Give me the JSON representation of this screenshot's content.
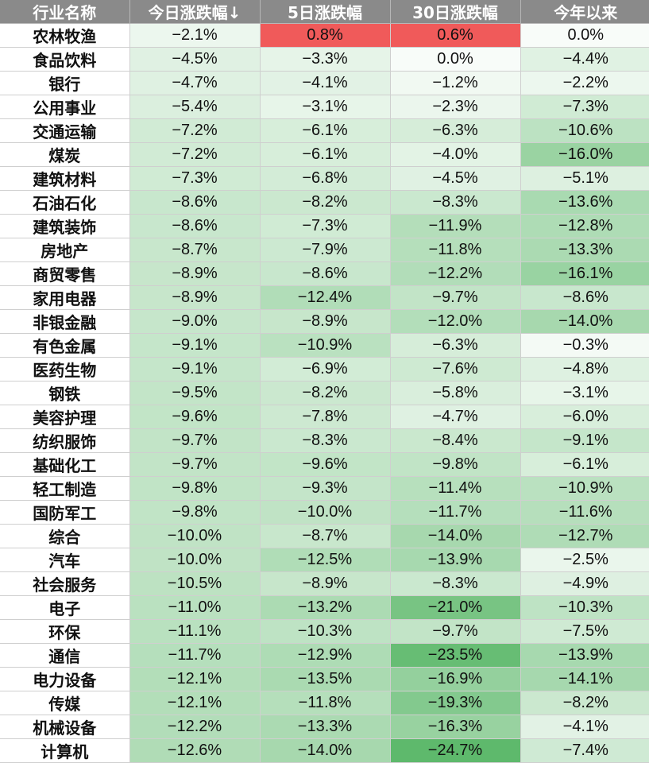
{
  "chart_data": {
    "type": "table",
    "columns": [
      "行业名称",
      "今日涨跌幅↓",
      "5日涨跌幅",
      "30日涨跌幅",
      "今年以来"
    ],
    "rows": [
      [
        "农林牧渔",
        "−2.1%",
        "0.8%",
        "0.6%",
        "0.0%"
      ],
      [
        "食品饮料",
        "−4.5%",
        "−3.3%",
        "0.0%",
        "−4.4%"
      ],
      [
        "银行",
        "−4.7%",
        "−4.1%",
        "−1.2%",
        "−2.2%"
      ],
      [
        "公用事业",
        "−5.4%",
        "−3.1%",
        "−2.3%",
        "−7.3%"
      ],
      [
        "交通运输",
        "−7.2%",
        "−6.1%",
        "−6.3%",
        "−10.6%"
      ],
      [
        "煤炭",
        "−7.2%",
        "−6.1%",
        "−4.0%",
        "−16.0%"
      ],
      [
        "建筑材料",
        "−7.3%",
        "−6.8%",
        "−4.5%",
        "−5.1%"
      ],
      [
        "石油石化",
        "−8.6%",
        "−8.2%",
        "−8.3%",
        "−13.6%"
      ],
      [
        "建筑装饰",
        "−8.6%",
        "−7.3%",
        "−11.9%",
        "−12.8%"
      ],
      [
        "房地产",
        "−8.7%",
        "−7.9%",
        "−11.8%",
        "−13.3%"
      ],
      [
        "商贸零售",
        "−8.9%",
        "−8.6%",
        "−12.2%",
        "−16.1%"
      ],
      [
        "家用电器",
        "−8.9%",
        "−12.4%",
        "−9.7%",
        "−8.6%"
      ],
      [
        "非银金融",
        "−9.0%",
        "−8.9%",
        "−12.0%",
        "−14.0%"
      ],
      [
        "有色金属",
        "−9.1%",
        "−10.9%",
        "−6.3%",
        "−0.3%"
      ],
      [
        "医药生物",
        "−9.1%",
        "−6.9%",
        "−7.6%",
        "−4.8%"
      ],
      [
        "钢铁",
        "−9.5%",
        "−8.2%",
        "−5.8%",
        "−3.1%"
      ],
      [
        "美容护理",
        "−9.6%",
        "−7.8%",
        "−4.7%",
        "−6.0%"
      ],
      [
        "纺织服饰",
        "−9.7%",
        "−8.3%",
        "−8.4%",
        "−9.1%"
      ],
      [
        "基础化工",
        "−9.7%",
        "−9.6%",
        "−9.8%",
        "−6.1%"
      ],
      [
        "轻工制造",
        "−9.8%",
        "−9.3%",
        "−11.4%",
        "−10.9%"
      ],
      [
        "国防军工",
        "−9.8%",
        "−10.0%",
        "−11.7%",
        "−11.6%"
      ],
      [
        "综合",
        "−10.0%",
        "−8.7%",
        "−14.0%",
        "−12.7%"
      ],
      [
        "汽车",
        "−10.0%",
        "−12.5%",
        "−13.9%",
        "−2.5%"
      ],
      [
        "社会服务",
        "−10.5%",
        "−8.9%",
        "−8.3%",
        "−4.9%"
      ],
      [
        "电子",
        "−11.0%",
        "−13.2%",
        "−21.0%",
        "−10.3%"
      ],
      [
        "环保",
        "−11.1%",
        "−10.3%",
        "−9.7%",
        "−7.5%"
      ],
      [
        "通信",
        "−11.7%",
        "−12.9%",
        "−23.5%",
        "−13.9%"
      ],
      [
        "电力设备",
        "−12.1%",
        "−13.5%",
        "−16.9%",
        "−14.1%"
      ],
      [
        "传媒",
        "−12.1%",
        "−11.8%",
        "−19.3%",
        "−8.2%"
      ],
      [
        "机械设备",
        "−12.2%",
        "−13.3%",
        "−16.3%",
        "−4.1%"
      ],
      [
        "计算机",
        "−12.6%",
        "−14.0%",
        "−24.7%",
        "−7.4%"
      ]
    ],
    "values": [
      [
        -2.1,
        0.8,
        0.6,
        0.0
      ],
      [
        -4.5,
        -3.3,
        0.0,
        -4.4
      ],
      [
        -4.7,
        -4.1,
        -1.2,
        -2.2
      ],
      [
        -5.4,
        -3.1,
        -2.3,
        -7.3
      ],
      [
        -7.2,
        -6.1,
        -6.3,
        -10.6
      ],
      [
        -7.2,
        -6.1,
        -4.0,
        -16.0
      ],
      [
        -7.3,
        -6.8,
        -4.5,
        -5.1
      ],
      [
        -8.6,
        -8.2,
        -8.3,
        -13.6
      ],
      [
        -8.6,
        -7.3,
        -11.9,
        -12.8
      ],
      [
        -8.7,
        -7.9,
        -11.8,
        -13.3
      ],
      [
        -8.9,
        -8.6,
        -12.2,
        -16.1
      ],
      [
        -8.9,
        -12.4,
        -9.7,
        -8.6
      ],
      [
        -9.0,
        -8.9,
        -12.0,
        -14.0
      ],
      [
        -9.1,
        -10.9,
        -6.3,
        -0.3
      ],
      [
        -9.1,
        -6.9,
        -7.6,
        -4.8
      ],
      [
        -9.5,
        -8.2,
        -5.8,
        -3.1
      ],
      [
        -9.6,
        -7.8,
        -4.7,
        -6.0
      ],
      [
        -9.7,
        -8.3,
        -8.4,
        -9.1
      ],
      [
        -9.7,
        -9.6,
        -9.8,
        -6.1
      ],
      [
        -9.8,
        -9.3,
        -11.4,
        -10.9
      ],
      [
        -9.8,
        -10.0,
        -11.7,
        -11.6
      ],
      [
        -10.0,
        -8.7,
        -14.0,
        -12.7
      ],
      [
        -10.0,
        -12.5,
        -13.9,
        -2.5
      ],
      [
        -10.5,
        -8.9,
        -8.3,
        -4.9
      ],
      [
        -11.0,
        -13.2,
        -21.0,
        -10.3
      ],
      [
        -11.1,
        -10.3,
        -9.7,
        -7.5
      ],
      [
        -11.7,
        -12.9,
        -23.5,
        -13.9
      ],
      [
        -12.1,
        -13.5,
        -16.9,
        -14.1
      ],
      [
        -12.1,
        -11.8,
        -19.3,
        -8.2
      ],
      [
        -12.2,
        -13.3,
        -16.3,
        -4.1
      ],
      [
        -12.6,
        -14.0,
        -24.7,
        -7.4
      ]
    ],
    "heat_colors": {
      "header_bg": "#8a8a8a",
      "positive": "#f05a5a",
      "negative": "#5cb86a",
      "neutral": "#ffffff"
    }
  }
}
